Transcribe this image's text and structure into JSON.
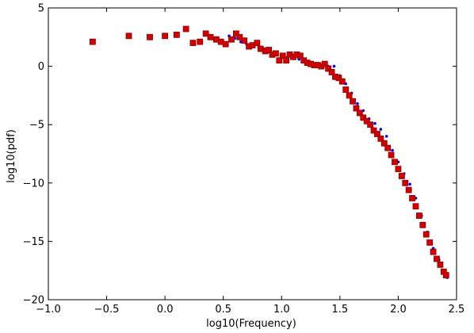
{
  "chart_data": {
    "type": "scatter",
    "xlabel": "log10(Frequency)",
    "ylabel": "log10(pdf)",
    "xlim": [
      -1.0,
      2.5
    ],
    "ylim": [
      -20,
      5
    ],
    "x_ticks": [
      -1.0,
      -0.5,
      0.0,
      0.5,
      1.0,
      1.5,
      2.0,
      2.5
    ],
    "x_tick_labels": [
      "−1.0",
      "−0.5",
      "0.0",
      "0.5",
      "1.0",
      "1.5",
      "2.0",
      "2.5"
    ],
    "y_ticks": [
      5,
      0,
      -5,
      -10,
      -15,
      -20
    ],
    "y_tick_labels": [
      "5",
      "0",
      "−5",
      "−10",
      "−15",
      "−20"
    ],
    "grid": false,
    "legend": "none",
    "series": [
      {
        "marker": "small-dot",
        "color": "#0000ff",
        "x": [
          0.55,
          0.6,
          0.65,
          0.7,
          0.75,
          0.8,
          0.85,
          0.9,
          0.95,
          1.0,
          1.05,
          1.1,
          1.15,
          1.2,
          1.25,
          1.3,
          1.35,
          1.4,
          1.45,
          1.5,
          1.55,
          1.6,
          1.65,
          1.7,
          1.75,
          1.8,
          1.85,
          1.9,
          1.95,
          2.0,
          2.05,
          2.1,
          2.15,
          2.2,
          2.25,
          2.3,
          2.35,
          2.4,
          2.42
        ],
        "y": [
          2.6,
          2.4,
          2.1,
          1.9,
          1.9,
          1.8,
          1.5,
          1.2,
          1.0,
          0.8,
          0.8,
          0.7,
          0.6,
          0.4,
          0.3,
          0.2,
          0.1,
          0.0,
          0.0,
          -0.8,
          -1.5,
          -2.3,
          -3.2,
          -3.8,
          -4.5,
          -4.9,
          -5.4,
          -6.0,
          -7.2,
          -8.2,
          -9.2,
          -10.1,
          -11.3,
          -12.8,
          -14.2,
          -15.6,
          -16.6,
          -17.8,
          -18.1
        ]
      },
      {
        "marker": "square",
        "color": "#d40000",
        "x": [
          -0.62,
          -0.31,
          -0.13,
          0.0,
          0.1,
          0.18,
          0.24,
          0.3,
          0.35,
          0.39,
          0.44,
          0.48,
          0.52,
          0.57,
          0.61,
          0.64,
          0.68,
          0.72,
          0.75,
          0.79,
          0.82,
          0.86,
          0.89,
          0.92,
          0.95,
          0.98,
          1.01,
          1.04,
          1.07,
          1.1,
          1.13,
          1.16,
          1.19,
          1.22,
          1.25,
          1.28,
          1.31,
          1.34,
          1.37,
          1.4,
          1.43,
          1.46,
          1.49,
          1.52,
          1.55,
          1.58,
          1.61,
          1.64,
          1.67,
          1.7,
          1.73,
          1.76,
          1.79,
          1.82,
          1.85,
          1.88,
          1.91,
          1.94,
          1.97,
          2.0,
          2.03,
          2.06,
          2.09,
          2.12,
          2.15,
          2.18,
          2.21,
          2.24,
          2.27,
          2.3,
          2.33,
          2.36,
          2.39,
          2.41
        ],
        "y": [
          2.1,
          2.6,
          2.5,
          2.6,
          2.7,
          3.2,
          2.0,
          2.1,
          2.8,
          2.5,
          2.3,
          2.1,
          1.9,
          2.3,
          2.8,
          2.5,
          2.2,
          1.7,
          1.8,
          2.0,
          1.5,
          1.3,
          1.4,
          1.0,
          1.1,
          0.5,
          0.9,
          0.5,
          1.0,
          0.8,
          1.0,
          0.9,
          0.5,
          0.3,
          0.2,
          0.1,
          0.1,
          0.0,
          0.2,
          -0.2,
          -0.5,
          -0.9,
          -1.0,
          -1.3,
          -2.0,
          -2.5,
          -3.0,
          -3.6,
          -4.0,
          -4.4,
          -4.7,
          -5.0,
          -5.5,
          -5.8,
          -6.2,
          -6.6,
          -7.0,
          -7.6,
          -8.2,
          -8.8,
          -9.4,
          -10.0,
          -10.6,
          -11.3,
          -12.0,
          -12.8,
          -13.6,
          -14.4,
          -15.1,
          -15.9,
          -16.5,
          -17.0,
          -17.6,
          -17.9
        ]
      }
    ]
  }
}
